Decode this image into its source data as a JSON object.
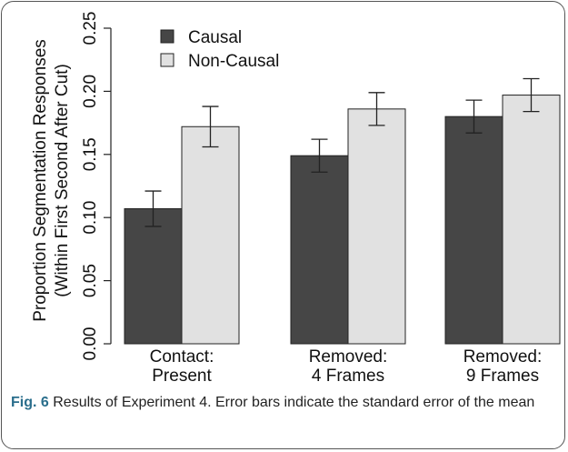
{
  "chart_data": {
    "type": "bar",
    "ylabel": [
      "Proportion Segmentation Responses",
      "(Within First Second After Cut)"
    ],
    "categories": [
      [
        "Contact:",
        "Present"
      ],
      [
        "Removed:",
        "4 Frames"
      ],
      [
        "Removed:",
        "9 Frames"
      ]
    ],
    "series": [
      {
        "name": "Causal",
        "color": "#464646",
        "values": [
          0.107,
          0.149,
          0.18
        ],
        "errors": [
          0.014,
          0.013,
          0.013
        ]
      },
      {
        "name": "Non-Causal",
        "color": "#e1e1e1",
        "values": [
          0.172,
          0.186,
          0.197
        ],
        "errors": [
          0.016,
          0.013,
          0.013
        ]
      }
    ],
    "ylim": [
      0,
      0.25
    ],
    "yticks": [
      {
        "value": 0,
        "label": "0.00"
      },
      {
        "value": 0.05,
        "label": "0.05"
      },
      {
        "value": 0.1,
        "label": "0.10"
      },
      {
        "value": 0.15,
        "label": "0.15"
      },
      {
        "value": 0.2,
        "label": "0.20"
      },
      0.25
    ],
    "legend": "top-left"
  },
  "caption": {
    "label": "Fig. 6",
    "text": "Results of Experiment 4. Error bars indicate the standard error of the mean"
  }
}
